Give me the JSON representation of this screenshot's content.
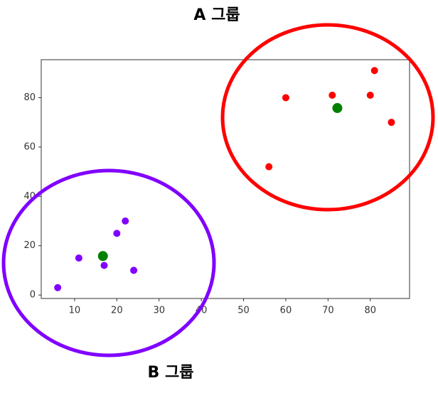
{
  "chart_data": {
    "type": "scatter",
    "annotations": [
      "A 그룹",
      "B 그룹"
    ],
    "series": [
      {
        "color": "#ff0000",
        "x": [
          60,
          71,
          81,
          80,
          85,
          56
        ],
        "values": [
          80,
          81,
          91,
          81,
          70,
          52
        ],
        "size": 5
      },
      {
        "color": "#8000ff",
        "x": [
          6,
          11,
          20,
          22,
          17,
          24
        ],
        "values": [
          3,
          15,
          25,
          30,
          12,
          10
        ],
        "size": 5
      },
      {
        "color": "#008000",
        "x": [
          72.2,
          16.7
        ],
        "values": [
          75.8,
          15.8
        ],
        "size": 7
      }
    ],
    "xlim": [
      2.1,
      89.3
    ],
    "ylim": [
      -1.4,
      95.4
    ],
    "xticks": [
      10,
      20,
      30,
      40,
      50,
      60,
      70,
      80
    ],
    "yticks": [
      0,
      20,
      40,
      60,
      80
    ],
    "grid": false
  }
}
